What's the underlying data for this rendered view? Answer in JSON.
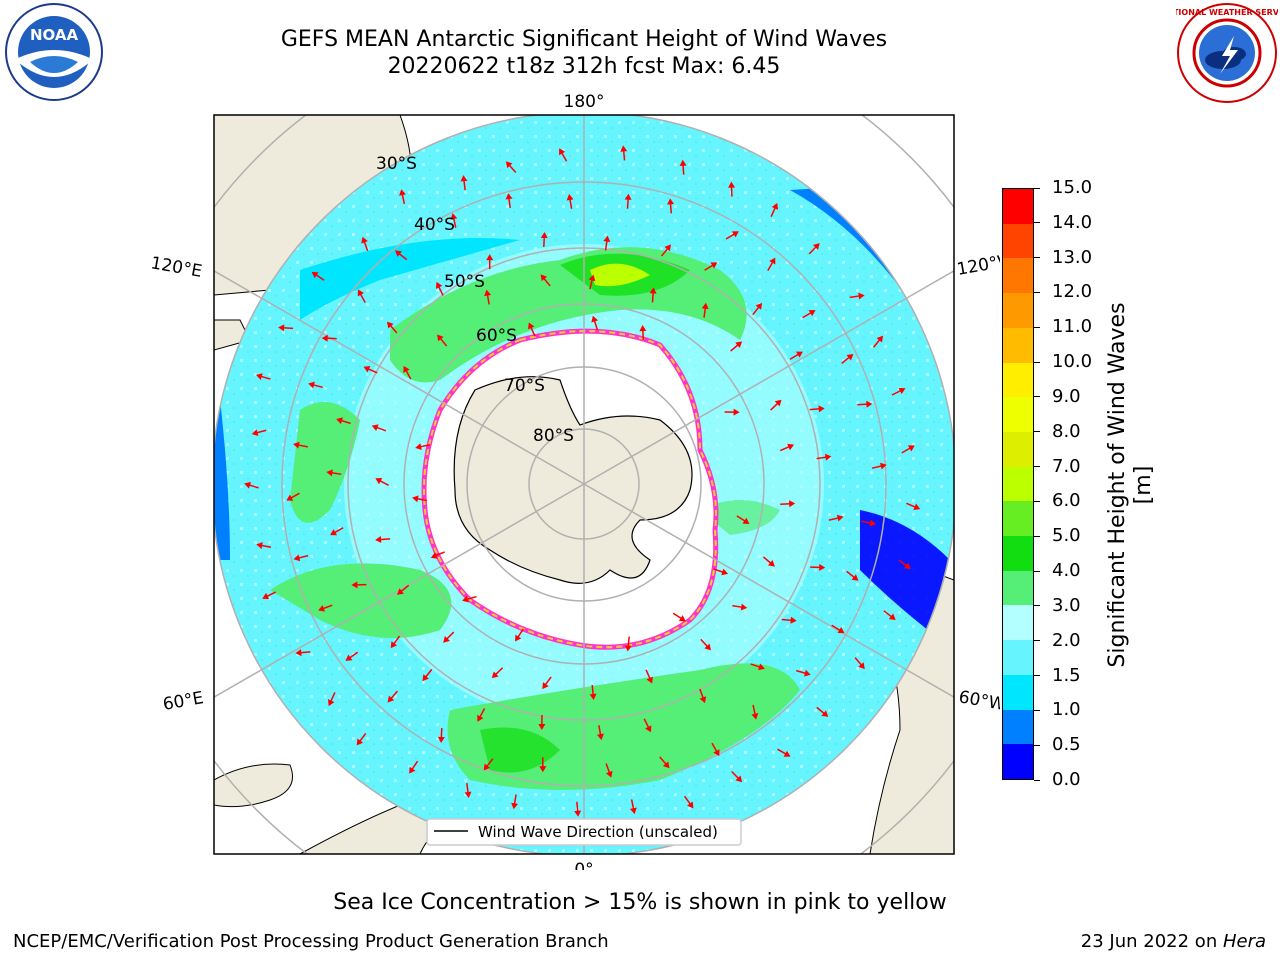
{
  "header": {
    "title_line1": "GEFS MEAN Antarctic Significant Height of Wind Waves",
    "title_line2": "20220622 t18z 312h fcst   Max: 6.45"
  },
  "logos": {
    "left": {
      "icon": "noaa-logo-icon",
      "text": "NOAA"
    },
    "right": {
      "icon": "national-weather-service-logo-icon",
      "text": "NATIONAL WEATHER SERVICE"
    }
  },
  "map": {
    "projection": "south-polar-stereographic",
    "longitude_labels": {
      "top": "180°",
      "upper_left": "120°E",
      "upper_right": "120°W",
      "lower_left": "60°E",
      "lower_right": "60°W",
      "bottom": "0°"
    },
    "latitude_labels": [
      "30°S",
      "40°S",
      "50°S",
      "60°S",
      "70°S",
      "80°S"
    ],
    "legend": {
      "label": "Wind Wave Direction (unscaled)"
    },
    "colors": {
      "land": "#efebdc",
      "sea_ice_fill": "#ffffff",
      "sea_ice_edge": [
        "#ff33cc",
        "#ffcc33"
      ],
      "arrow": "#ff0000",
      "grid": "#b0b0b0"
    }
  },
  "colorbar": {
    "title": "Significant Height of Wind Waves [m]",
    "tick_labels": [
      "0.0",
      "0.5",
      "1.0",
      "1.5",
      "2.0",
      "3.0",
      "4.0",
      "5.0",
      "6.0",
      "7.0",
      "8.0",
      "9.0",
      "10.0",
      "11.0",
      "12.0",
      "13.0",
      "14.0",
      "15.0"
    ],
    "colors": [
      "#0000ff",
      "#0080ff",
      "#00e6ff",
      "#66f5ff",
      "#b3ffff",
      "#55ee77",
      "#11dd11",
      "#66ee22",
      "#bbff00",
      "#ddee00",
      "#eeff00",
      "#ffee00",
      "#ffbb00",
      "#ff9900",
      "#ff7700",
      "#ff4400",
      "#ff0000"
    ]
  },
  "footer": {
    "note": "Sea Ice Concentration > 15% is shown in pink to yellow",
    "left": "NCEP/EMC/Verification Post Processing Product Generation Branch",
    "right_prefix": "23 Jun 2022 on ",
    "right_machine": "Hera"
  }
}
